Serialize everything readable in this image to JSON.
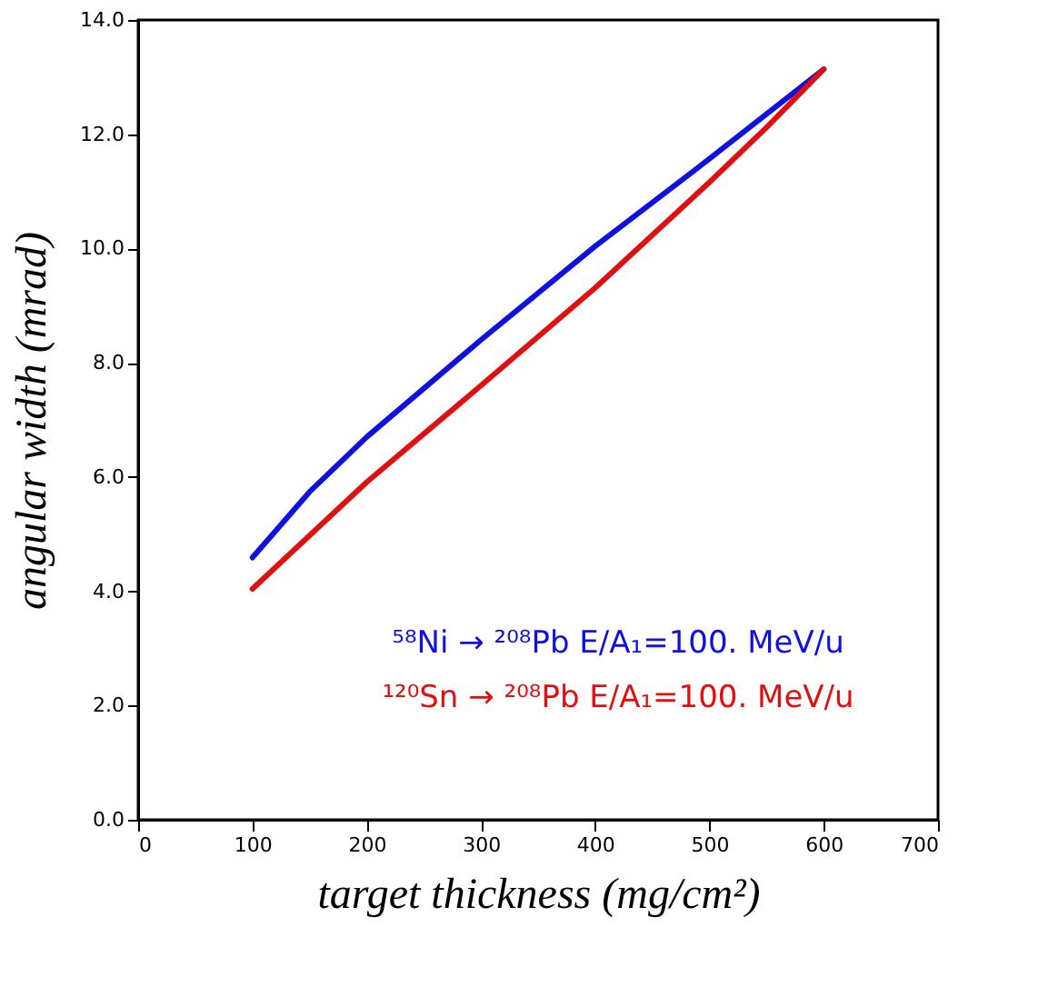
{
  "chart_data": {
    "type": "line",
    "xlabel": "target thickness (mg/cm²)",
    "ylabel": "angular width (mrad)",
    "series": [
      {
        "name": "⁵⁸Ni → ²⁰⁸Pb E/A₁=100. MeV/u",
        "color": "#1010e0",
        "x": [
          100,
          150,
          200,
          300,
          400,
          500,
          600
        ],
        "values": [
          4.59,
          5.74,
          6.7,
          8.4,
          10.04,
          11.57,
          13.14
        ]
      },
      {
        "name": "¹²⁰Sn → ²⁰⁸Pb E/A₁=100. MeV/u",
        "color": "#e01010",
        "x": [
          100,
          200,
          300,
          400,
          500,
          550,
          600
        ],
        "values": [
          4.04,
          5.91,
          7.6,
          9.31,
          11.16,
          12.12,
          13.14
        ]
      }
    ],
    "xlim": [
      0,
      700
    ],
    "xticks": [
      0,
      100,
      200,
      300,
      400,
      500,
      600,
      700
    ],
    "ylim": [
      0,
      14
    ],
    "yticks": [
      {
        "value": 0,
        "label": "0.0"
      },
      {
        "value": 2,
        "label": "2.0"
      },
      {
        "value": 4,
        "label": "4.0"
      },
      {
        "value": 6,
        "label": "6.0"
      },
      {
        "value": 8,
        "label": "8.0"
      },
      {
        "value": 10,
        "label": "10.0"
      },
      {
        "value": 12,
        "label": "12.0"
      },
      {
        "value": 14,
        "label": "14.0"
      }
    ],
    "legend": "bottom",
    "grid": false,
    "marker": "none",
    "line_style": "solid"
  }
}
